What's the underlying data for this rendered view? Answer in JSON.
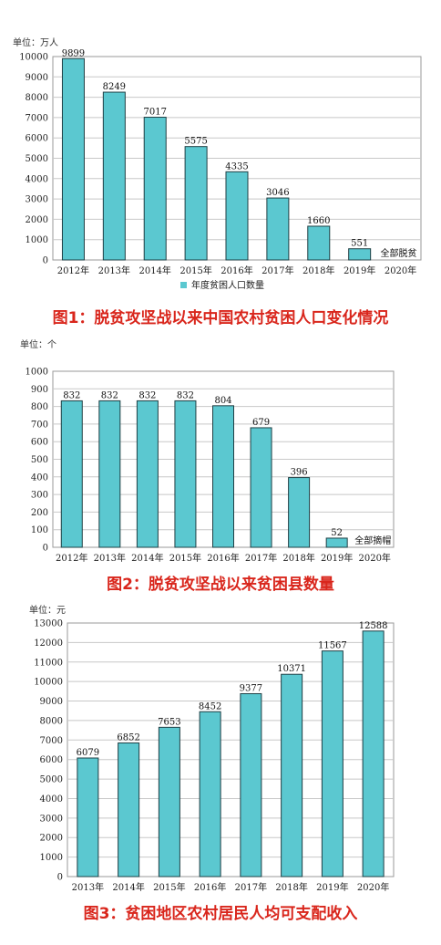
{
  "chart_data": [
    {
      "type": "bar",
      "title": "图1：脱贫攻坚战以来中国农村贫困人口变化情况",
      "unit": "单位：万人",
      "categories": [
        "2012年",
        "2013年",
        "2014年",
        "2015年",
        "2016年",
        "2017年",
        "2018年",
        "2019年",
        "2020年"
      ],
      "values": [
        9899,
        8249,
        7017,
        5575,
        4335,
        3046,
        1660,
        551,
        0
      ],
      "value_labels": [
        "9899",
        "8249",
        "7017",
        "5575",
        "4335",
        "3046",
        "1660",
        "551",
        "全部脱贫"
      ],
      "legend": [
        "年度贫困人口数量"
      ],
      "ylim": [
        0,
        10000
      ],
      "yticks": [
        "0",
        "1000",
        "2000",
        "3000",
        "4000",
        "5000",
        "6000",
        "7000",
        "8000",
        "9000",
        "10000"
      ],
      "grid": true,
      "bar_color": "#5bc8d0"
    },
    {
      "type": "bar",
      "title": "图2：脱贫攻坚战以来贫困县数量",
      "unit": "单位：个",
      "categories": [
        "2012年",
        "2013年",
        "2014年",
        "2015年",
        "2016年",
        "2017年",
        "2018年",
        "2019年",
        "2020年"
      ],
      "values": [
        832,
        832,
        832,
        832,
        804,
        679,
        396,
        52,
        0
      ],
      "value_labels": [
        "832",
        "832",
        "832",
        "832",
        "804",
        "679",
        "396",
        "52",
        "全部摘帽"
      ],
      "ylim": [
        0,
        1000
      ],
      "yticks": [
        "0",
        "100",
        "200",
        "300",
        "400",
        "500",
        "600",
        "700",
        "800",
        "900",
        "1000"
      ],
      "grid": true,
      "bar_color": "#5bc8d0"
    },
    {
      "type": "bar",
      "title": "图3：贫困地区农村居民人均可支配收入",
      "unit": "单位：元",
      "categories": [
        "2013年",
        "2014年",
        "2015年",
        "2016年",
        "2017年",
        "2018年",
        "2019年",
        "2020年"
      ],
      "values": [
        6079,
        6852,
        7653,
        8452,
        9377,
        10371,
        11567,
        12588
      ],
      "value_labels": [
        "6079",
        "6852",
        "7653",
        "8452",
        "9377",
        "10371",
        "11567",
        "12588"
      ],
      "ylim": [
        0,
        13000
      ],
      "yticks": [
        "0",
        "1000",
        "2000",
        "3000",
        "4000",
        "5000",
        "6000",
        "7000",
        "8000",
        "9000",
        "10000",
        "11000",
        "12000",
        "13000"
      ],
      "grid": true,
      "bar_color": "#5bc8d0"
    }
  ]
}
